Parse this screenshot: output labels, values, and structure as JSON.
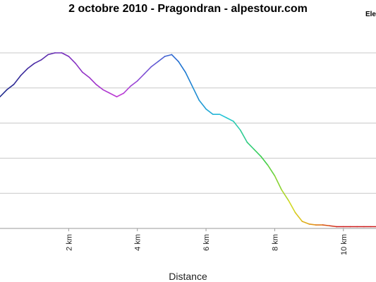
{
  "chart_data": {
    "type": "line",
    "title": "2 octobre 2010 - Pragondran  - alpestour.com",
    "legend_label": "Ele",
    "xlabel": "Distance",
    "x_unit": "km",
    "xlim": [
      0,
      10.95
    ],
    "xticks": [
      {
        "value": 2,
        "label": "2 km"
      },
      {
        "value": 4,
        "label": "4 km"
      },
      {
        "value": 6,
        "label": "6 km"
      },
      {
        "value": 8,
        "label": "8 km"
      },
      {
        "value": 10,
        "label": "10 km"
      }
    ],
    "grid": "horizontal",
    "gridlines_fraction": [
      0,
      0.2,
      0.4,
      0.6,
      0.8,
      1.0
    ],
    "colors": [
      "#1a2a8a",
      "#7b2fbf",
      "#c23cd6",
      "#1d6fd0",
      "#27c9d9",
      "#3bcf4a",
      "#d8d820",
      "#e38a1a",
      "#cc1a1a"
    ],
    "series": [
      {
        "x": [
          0,
          0.2,
          0.4,
          0.6,
          0.8,
          1.0,
          1.2,
          1.4,
          1.6,
          1.8,
          2.0,
          2.2,
          2.4,
          2.6,
          2.8,
          3.0,
          3.2,
          3.4,
          3.6,
          3.8,
          4.0,
          4.2,
          4.4,
          4.6,
          4.8,
          5.0,
          5.2,
          5.4,
          5.6,
          5.8,
          6.0,
          6.2,
          6.4,
          6.6,
          6.8,
          7.0,
          7.2,
          7.4,
          7.6,
          7.8,
          8.0,
          8.2,
          8.4,
          8.6,
          8.8,
          9.0,
          9.2,
          9.4,
          9.6,
          9.8,
          10.0,
          10.2,
          10.4,
          10.6,
          10.8,
          10.95
        ],
        "y": [
          0.75,
          0.79,
          0.82,
          0.87,
          0.91,
          0.94,
          0.96,
          0.99,
          1.0,
          1.0,
          0.98,
          0.94,
          0.89,
          0.86,
          0.82,
          0.79,
          0.77,
          0.75,
          0.77,
          0.81,
          0.84,
          0.88,
          0.92,
          0.95,
          0.98,
          0.99,
          0.95,
          0.89,
          0.81,
          0.73,
          0.68,
          0.65,
          0.65,
          0.63,
          0.61,
          0.56,
          0.49,
          0.45,
          0.41,
          0.36,
          0.3,
          0.22,
          0.16,
          0.09,
          0.04,
          0.025,
          0.02,
          0.02,
          0.015,
          0.01,
          0.01,
          0.01,
          0.01,
          0.01,
          0.01,
          0.01
        ]
      }
    ]
  }
}
